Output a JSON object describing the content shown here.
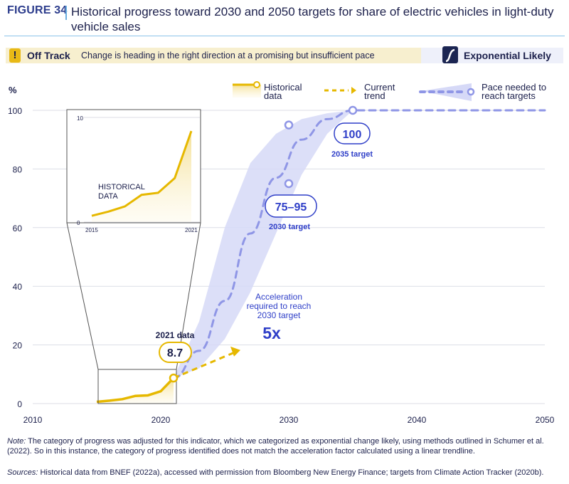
{
  "header": {
    "figure_label": "FIGURE 34",
    "title": "Historical progress toward 2030 and 2050 targets for share of electric vehicles in light-duty vehicle sales"
  },
  "status_bar": {
    "icon": "exclamation-icon",
    "label": "Off Track",
    "description": "Change is heading in the right direction at a promising but insufficient pace",
    "category_icon": "exponential-curve-icon",
    "category_label": "Exponential Likely"
  },
  "colors": {
    "historical": "#e6b800",
    "pace": "#8f96e6",
    "pace_fill": "#d6d9f7",
    "target_text": "#2f3fc8",
    "dark": "#1b1f4b",
    "grid": "#dcdde6"
  },
  "chart_data": {
    "type": "line",
    "title": "Historical progress toward 2030 and 2050 targets for share of electric vehicles in light-duty vehicle sales",
    "xlabel": "",
    "ylabel": "%",
    "xlim": [
      2010,
      2050
    ],
    "ylim": [
      0,
      100
    ],
    "x_ticks": [
      2010,
      2020,
      2030,
      2040,
      2050
    ],
    "y_ticks": [
      0,
      20,
      40,
      60,
      80,
      100
    ],
    "grid": true,
    "legend_position": "top-right",
    "legend": [
      {
        "label": "Historical data",
        "style": "solid-line-with-marker"
      },
      {
        "label": "Current trend",
        "style": "dashed-arrow"
      },
      {
        "label": "Pace needed to reach targets",
        "style": "dashed-line-with-band"
      }
    ],
    "series": [
      {
        "name": "Historical data",
        "x": [
          2015,
          2016,
          2017,
          2018,
          2019,
          2020,
          2021
        ],
        "values": [
          0.6,
          1.0,
          1.5,
          2.6,
          2.8,
          4.2,
          8.7
        ]
      },
      {
        "name": "Current trend",
        "x": [
          2021,
          2026
        ],
        "values": [
          8.7,
          18
        ]
      },
      {
        "name": "Pace needed to reach targets",
        "x": [
          2021,
          2023,
          2025,
          2027,
          2029,
          2031,
          2033,
          2035,
          2050
        ],
        "values": [
          8.7,
          18,
          35,
          58,
          77,
          90,
          97,
          100,
          100
        ],
        "band_upper": [
          8.7,
          28,
          60,
          82,
          92,
          97,
          99,
          100,
          100
        ],
        "band_lower": [
          8.7,
          12,
          22,
          38,
          58,
          78,
          92,
          100,
          100
        ]
      }
    ],
    "targets": [
      {
        "year": 2030,
        "range": [
          75,
          95
        ],
        "label": "75–95",
        "caption": "2030 target"
      },
      {
        "year": 2035,
        "value": 100,
        "label": "100",
        "caption": "2035 target"
      }
    ],
    "annotations": {
      "latest_caption": "2021 data",
      "latest_value": "8.7",
      "acceleration_text": [
        "Acceleration",
        "required to reach",
        "2030 target"
      ],
      "acceleration_value": "5x"
    },
    "inset": {
      "label": [
        "HISTORICAL",
        "DATA"
      ],
      "x_ticks": [
        "2015",
        "2021"
      ],
      "y_ticks": [
        "0",
        "10"
      ],
      "ylim": [
        0,
        10
      ]
    }
  },
  "footer": {
    "note_label": "Note:",
    "note": " The category of progress was adjusted for this indicator, which we categorized as exponential change likely, using methods outlined in Schumer et al. (2022). So in this instance, the category of progress identified does not  match the acceleration factor calculated using a linear trendline.",
    "sources_label": "Sources:",
    "sources": " Historical data from BNEF (2022a), accessed with permission from Bloomberg New Energy Finance; targets from Climate Action Tracker (2020b)."
  }
}
